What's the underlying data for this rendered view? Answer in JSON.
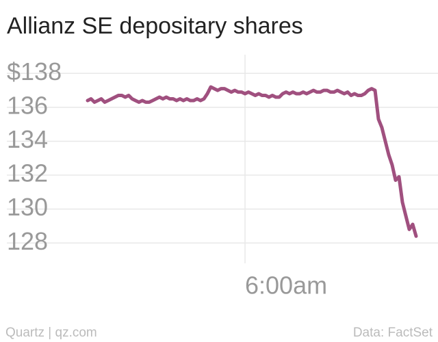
{
  "chart_data": {
    "type": "line",
    "title": "Allianz SE depositary shares",
    "credit": "Quartz | qz.com",
    "source": "Data: FactSet",
    "categories": [
      null,
      null,
      null,
      null,
      null,
      null,
      null,
      null,
      null,
      null,
      null,
      null,
      null,
      null,
      null,
      null,
      null,
      null,
      null,
      null,
      null,
      null,
      null,
      null,
      null,
      null,
      null,
      null,
      null,
      null,
      null,
      null,
      null,
      null,
      null,
      null,
      null,
      null,
      null,
      null,
      null,
      null,
      null,
      null,
      null,
      null,
      "6:00am",
      null,
      null,
      null,
      null,
      null,
      null,
      null,
      null,
      null,
      null,
      null,
      null,
      null,
      null,
      null,
      null,
      null,
      null,
      null,
      null,
      null,
      null,
      null,
      null,
      null,
      null,
      null,
      null,
      null,
      null,
      null,
      null,
      null,
      null,
      null,
      null,
      null,
      null,
      null,
      null,
      null,
      null,
      null,
      null,
      null,
      null,
      null,
      null,
      null,
      null
    ],
    "series": [
      {
        "color": "#a0507f",
        "values": [
          136.4,
          136.5,
          136.3,
          136.4,
          136.5,
          136.3,
          136.4,
          136.5,
          136.6,
          136.7,
          136.7,
          136.6,
          136.7,
          136.5,
          136.4,
          136.3,
          136.4,
          136.3,
          136.3,
          136.4,
          136.5,
          136.6,
          136.5,
          136.6,
          136.5,
          136.5,
          136.4,
          136.5,
          136.4,
          136.5,
          136.4,
          136.4,
          136.5,
          136.4,
          136.5,
          136.8,
          137.2,
          137.1,
          137.0,
          137.1,
          137.1,
          137.0,
          136.9,
          137.0,
          136.9,
          136.9,
          136.8,
          136.9,
          136.8,
          136.7,
          136.8,
          136.7,
          136.7,
          136.6,
          136.7,
          136.6,
          136.6,
          136.8,
          136.9,
          136.8,
          136.9,
          136.8,
          136.8,
          136.9,
          136.8,
          136.9,
          137.0,
          136.9,
          136.9,
          137.0,
          137.0,
          136.9,
          136.9,
          137.0,
          136.9,
          136.8,
          136.9,
          136.7,
          136.8,
          136.7,
          136.7,
          136.8,
          137.0,
          137.1,
          137.0,
          135.3,
          134.8,
          134.0,
          133.2,
          132.6,
          131.7,
          131.9,
          130.4,
          129.6,
          128.8,
          129.1,
          128.4
        ]
      }
    ],
    "ylim": [
      126.8,
      139.1
    ],
    "yticks": [
      128,
      130,
      132,
      134,
      136,
      {
        "value": 138,
        "label": "$138"
      }
    ],
    "grid": true
  }
}
